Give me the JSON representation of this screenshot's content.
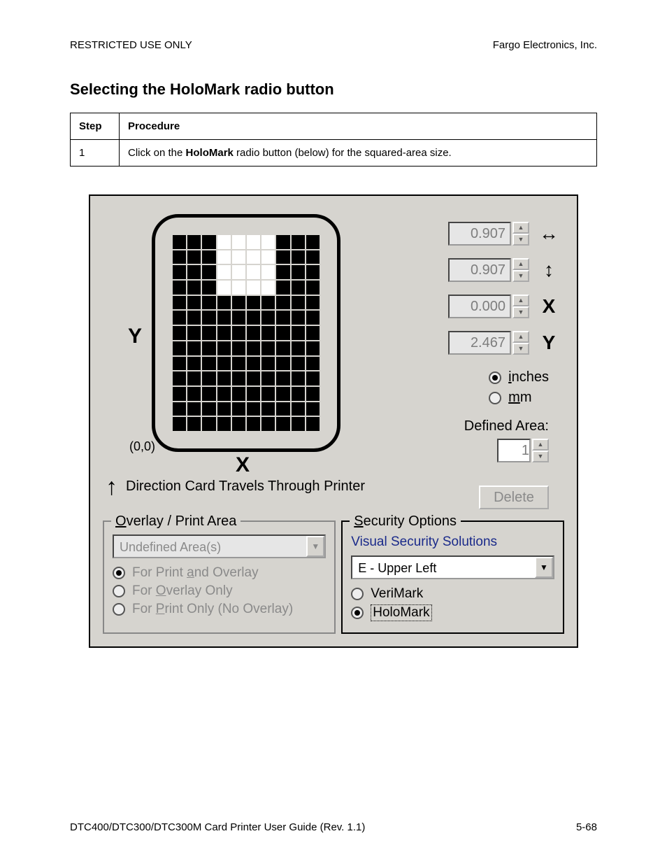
{
  "header": {
    "left": "RESTRICTED USE ONLY",
    "right": "Fargo Electronics, Inc."
  },
  "section_title": "Selecting the HoloMark radio button",
  "table": {
    "headers": {
      "step": "Step",
      "procedure": "Procedure"
    },
    "row": {
      "step": "1",
      "proc_pre": "Click on the ",
      "proc_bold": "HoloMark",
      "proc_post": " radio button (below) for the squared-area size."
    }
  },
  "dialog": {
    "grid": {
      "cols": 10,
      "rows": 13,
      "white_cells": [
        [
          0,
          3
        ],
        [
          0,
          4
        ],
        [
          0,
          5
        ],
        [
          0,
          6
        ],
        [
          1,
          3
        ],
        [
          1,
          4
        ],
        [
          1,
          5
        ],
        [
          1,
          6
        ],
        [
          2,
          3
        ],
        [
          2,
          4
        ],
        [
          2,
          5
        ],
        [
          2,
          6
        ],
        [
          3,
          3
        ],
        [
          3,
          4
        ],
        [
          3,
          5
        ],
        [
          3,
          6
        ]
      ]
    },
    "y_label": "Y",
    "x_label": "X",
    "origin": "(0,0)",
    "spinners": [
      {
        "value": "0.907",
        "icon": "↔"
      },
      {
        "value": "0.907",
        "icon": "↕"
      },
      {
        "value": "0.000",
        "icon": "X"
      },
      {
        "value": "2.467",
        "icon": "Y"
      }
    ],
    "units": {
      "inches": {
        "label": "inches",
        "accel": "i",
        "selected": true
      },
      "mm": {
        "label": "mm",
        "accel": "m",
        "selected": false
      }
    },
    "defined_area": {
      "label": "Defined Area:",
      "value": "1"
    },
    "direction_text": "Direction Card Travels Through Printer",
    "delete_label": "Delete",
    "overlay_group": {
      "legend_pre": "O",
      "legend_rest": "verlay / Print Area",
      "combo": "Undefined Area(s)",
      "options": [
        {
          "pre": "For Print ",
          "accel": "a",
          "post": "nd Overlay",
          "selected": true
        },
        {
          "pre": "For ",
          "accel": "O",
          "post": "verlay Only",
          "selected": false
        },
        {
          "pre": "For ",
          "accel": "P",
          "post": "rint Only (No Overlay)",
          "selected": false
        }
      ]
    },
    "security_group": {
      "legend_pre": "S",
      "legend_rest": "ecurity Options",
      "vss_label": "Visual Security Solutions",
      "combo": "E - Upper Left",
      "options": [
        {
          "label": "VeriMark",
          "selected": false
        },
        {
          "label": "HoloMark",
          "selected": true
        }
      ]
    }
  },
  "footer": {
    "left": "DTC400/DTC300/DTC300M Card Printer User Guide (Rev. 1.1)",
    "right": "5-68"
  }
}
